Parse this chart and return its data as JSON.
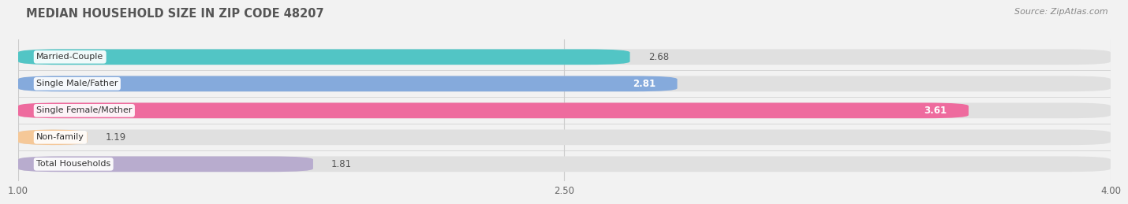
{
  "title": "MEDIAN HOUSEHOLD SIZE IN ZIP CODE 48207",
  "source": "Source: ZipAtlas.com",
  "categories": [
    "Married-Couple",
    "Single Male/Father",
    "Single Female/Mother",
    "Non-family",
    "Total Households"
  ],
  "values": [
    2.68,
    2.81,
    3.61,
    1.19,
    1.81
  ],
  "bar_colors": [
    "#52C5C5",
    "#85AADC",
    "#EE6B9E",
    "#F5C898",
    "#B8ACCE"
  ],
  "xlim": [
    1.0,
    4.0
  ],
  "xticks": [
    1.0,
    2.5,
    4.0
  ],
  "xticklabels": [
    "1.00",
    "2.50",
    "4.00"
  ],
  "value_label_inside": [
    false,
    false,
    false,
    false,
    false
  ],
  "background_color": "#f2f2f2",
  "bar_bg_color": "#e0e0e0",
  "title_fontsize": 10.5,
  "source_fontsize": 8,
  "bar_height": 0.58
}
